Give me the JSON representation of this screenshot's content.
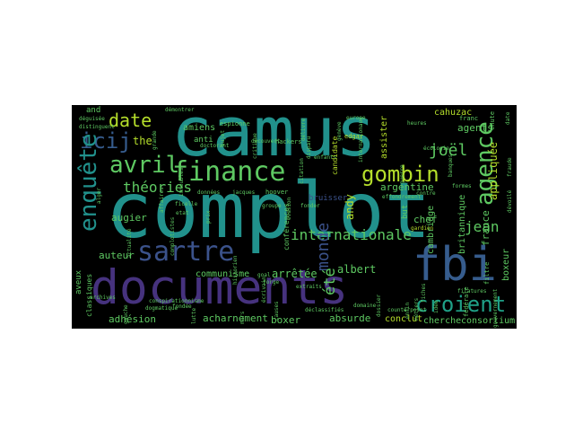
{
  "colors": {
    "teal": "#21918c",
    "purple": "#46327e",
    "blue": "#365c8d",
    "green": "#5ec962",
    "lime": "#b5de2b",
    "yellow": "#fde725",
    "cyan": "#1fa187",
    "slate": "#3b528b",
    "dark": "#440154"
  },
  "words": {
    "camus": "camus",
    "complot": "complot",
    "documents": "documents",
    "fbi": "fbi",
    "finance": "finance",
    "sartre": "sartre",
    "avril": "avril",
    "enquete": "enquête",
    "agence": "agence",
    "gombin": "gombin",
    "croient": "croient",
    "date": "date",
    "icij": "icij",
    "theories": "théories",
    "internationale": "internationale",
    "joel": "joël",
    "monde": "monde",
    "ete": "été",
    "arretee": "arrêtée",
    "jean": "jean",
    "albert": "albert",
    "absurde": "absurde",
    "acharnement": "acharnement",
    "adhesion": "adhésion",
    "boxer": "boxer",
    "conclut": "conclut",
    "cherche": "cherche",
    "consortium": "consortium",
    "communisme": "communisme",
    "auteur": "auteur",
    "augier": "augier",
    "the": "the",
    "and": "and",
    "agents": "agents",
    "argentine": "argentine",
    "cahuzac": "cahuzac",
    "andy": "andy",
    "chef": "chef",
    "cambridge": "cambridge",
    "britannique": "britannique",
    "appliquee": "appliquée",
    "bruisser": "bruisser",
    "amiens": "amiens",
    "anti": "anti",
    "candidate": "candidate",
    "assister": "assister",
    "boxeur": "boxeur",
    "aveux": "aveux",
    "classiques": "classiques",
    "conferences": "conférences",
    "france": "france",
    "but": "but",
    "chute": "chute",
    "federale": "fédérale",
    "espionne": "espionne",
    "fondee": "fondée",
    "dogmatique": "dogmatique",
    "filtre": "filtre",
    "europe": "europe",
    "edgar": "edgar",
    "franc": "franc",
    "heures": "heures",
    "hoover": "hoover",
    "hackers": "hackers",
    "gardien": "gardien",
    "donnees": "données",
    "demontrer": "démontrer",
    "distinguent": "distinguent",
    "domaine": "domaine",
    "doctorant": "doctorant",
    "conspirationnisme": "conspirationnisme",
    "counterpoint": "counterpoint",
    "decouvert": "découvert",
    "ecologie": "écologie",
    "filatures": "filatures",
    "contre": "contre",
    "etat": "etat",
    "goal": "goal",
    "fonder": "fonder",
    "forge": "forge",
    "deguisee": "déguisée",
    "groupe": "groupe",
    "jacques": "jacques",
    "internationaux": "internationaux",
    "formes": "formes",
    "enfants": "enfants",
    "dossier": "dossier",
    "enfin": "enfin",
    "metiers": "métiers",
    "extraits": "extraits",
    "grande": "grande",
    "effondrement": "effondrement",
    "declassifies": "déclassifiés",
    "archives": "archives",
    "ficelle": "ficelle",
    "gouvernement": "gouvernement",
    "immeubles": "immeubles",
    "critique": "critique",
    "delivre": "délivre",
    "disparu": "disparu",
    "geneve": "genève",
    "actualite": "actualité",
    "complotistes": "complotistes",
    "historien": "historien",
    "ecrivain": "écrivain",
    "fiches": "fiches",
    "idee": "idée",
    "date2": "date",
    "sujet": "sujet",
    "affaires": "affaires",
    "alger": "alger",
    "citation": "citation",
    "guerre": "guerre",
    "causes": "causes",
    "devoile": "dévoilé",
    "fraude": "fraude",
    "banques": "banques",
    "evasion": "évasion",
    "prix": "prix",
    "gauche": "gauche",
    "lutte": "lutte",
    "mars": "mars"
  }
}
